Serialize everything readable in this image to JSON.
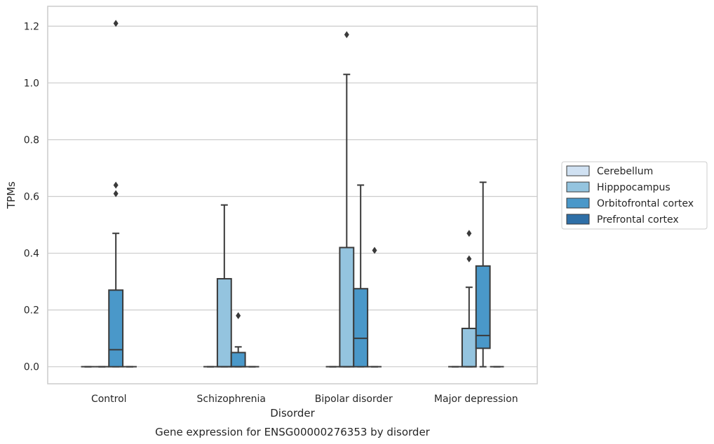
{
  "chart_data": {
    "type": "box",
    "title": "",
    "caption": "Gene expression for ENSG00000276353 by disorder",
    "xlabel": "Disorder",
    "ylabel": "TPMs",
    "ylim": [
      -0.06,
      1.27
    ],
    "yticks": [
      "0.0",
      "0.2",
      "0.4",
      "0.6",
      "0.8",
      "1.0",
      "1.2"
    ],
    "grid": true,
    "legend_position": "right",
    "categories": [
      "Control",
      "Schizophrenia",
      "Bipolar disorder",
      "Major depression"
    ],
    "series": [
      {
        "name": "Cerebellum",
        "color": "#d0e1f2",
        "boxes": [
          {
            "q1": 0,
            "median": 0,
            "q3": 0,
            "whisker_low": 0,
            "whisker_high": 0,
            "outliers": []
          },
          {
            "q1": 0,
            "median": 0,
            "q3": 0,
            "whisker_low": 0,
            "whisker_high": 0,
            "outliers": []
          },
          {
            "q1": 0,
            "median": 0,
            "q3": 0,
            "whisker_low": 0,
            "whisker_high": 0,
            "outliers": []
          },
          {
            "q1": 0,
            "median": 0,
            "q3": 0,
            "whisker_low": 0,
            "whisker_high": 0,
            "outliers": []
          }
        ]
      },
      {
        "name": "Hipppocampus",
        "color": "#94c4df",
        "boxes": [
          {
            "q1": 0,
            "median": 0,
            "q3": 0,
            "whisker_low": 0,
            "whisker_high": 0,
            "outliers": []
          },
          {
            "q1": 0,
            "median": 0,
            "q3": 0.31,
            "whisker_low": 0,
            "whisker_high": 0.57,
            "outliers": []
          },
          {
            "q1": 0,
            "median": 0,
            "q3": 0.42,
            "whisker_low": 0,
            "whisker_high": 1.03,
            "outliers": [
              1.17
            ]
          },
          {
            "q1": 0,
            "median": 0,
            "q3": 0.135,
            "whisker_low": 0,
            "whisker_high": 0.28,
            "outliers": [
              0.38,
              0.47
            ]
          }
        ]
      },
      {
        "name": "Orbitofrontal cortex",
        "color": "#4a98c9",
        "boxes": [
          {
            "q1": 0,
            "median": 0.06,
            "q3": 0.27,
            "whisker_low": 0,
            "whisker_high": 0.47,
            "outliers": [
              0.61,
              0.64,
              1.21
            ]
          },
          {
            "q1": 0,
            "median": 0,
            "q3": 0.05,
            "whisker_low": 0,
            "whisker_high": 0.07,
            "outliers": [
              0.18
            ]
          },
          {
            "q1": 0,
            "median": 0.1,
            "q3": 0.275,
            "whisker_low": 0,
            "whisker_high": 0.64,
            "outliers": []
          },
          {
            "q1": 0.065,
            "median": 0.11,
            "q3": 0.355,
            "whisker_low": 0,
            "whisker_high": 0.65,
            "outliers": []
          }
        ]
      },
      {
        "name": "Prefrontal cortex",
        "color": "#2e6fa7",
        "boxes": [
          {
            "q1": 0,
            "median": 0,
            "q3": 0,
            "whisker_low": 0,
            "whisker_high": 0,
            "outliers": []
          },
          {
            "q1": 0,
            "median": 0,
            "q3": 0,
            "whisker_low": 0,
            "whisker_high": 0,
            "outliers": []
          },
          {
            "q1": 0,
            "median": 0,
            "q3": 0,
            "whisker_low": 0,
            "whisker_high": 0,
            "outliers": [
              0.41
            ]
          },
          {
            "q1": 0,
            "median": 0,
            "q3": 0,
            "whisker_low": 0,
            "whisker_high": 0,
            "outliers": []
          }
        ]
      }
    ]
  }
}
